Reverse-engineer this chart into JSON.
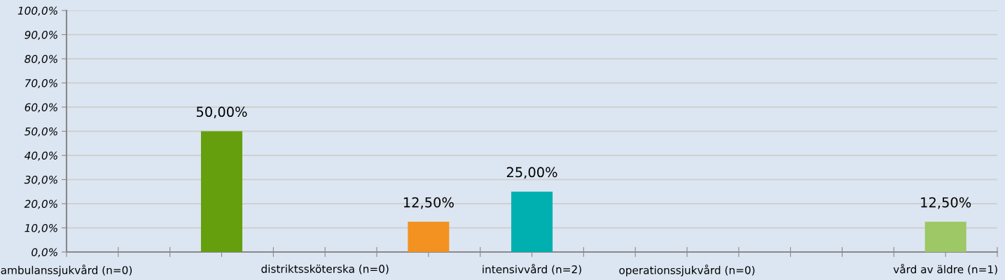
{
  "chart_data": {
    "type": "bar",
    "categories": [
      "ambulanssjukvård (n=0)",
      null,
      null,
      null,
      null,
      "distriktssköterska (n=0)",
      null,
      null,
      null,
      "intensivvård (n=2)",
      null,
      null,
      "operationssjukvård (n=0)",
      null,
      null,
      null,
      null,
      "vård av äldre (n=1)",
      null
    ],
    "values": [
      null,
      null,
      null,
      50,
      null,
      null,
      null,
      12.5,
      null,
      25,
      null,
      null,
      null,
      null,
      null,
      null,
      null,
      12.5,
      null
    ],
    "colors": [
      "#659f0d",
      "#659f0d",
      "#659f0d",
      "#659f0d",
      "#659f0d",
      "#659f0d",
      "#659f0d",
      "#f39221",
      "#659f0d",
      "#00b0b0",
      "#659f0d",
      "#659f0d",
      "#659f0d",
      "#659f0d",
      "#659f0d",
      "#659f0d",
      "#659f0d",
      "#9dc865",
      "#659f0d"
    ],
    "value_labels": [
      null,
      null,
      null,
      "50,00%",
      null,
      null,
      null,
      "12,50%",
      null,
      "25,00%",
      null,
      null,
      null,
      null,
      null,
      null,
      null,
      "12,50%",
      null
    ],
    "ylim": [
      0,
      100
    ],
    "yticks": [
      {
        "value": 0,
        "label": "0,0%"
      },
      {
        "value": 10,
        "label": "10,0%"
      },
      {
        "value": 20,
        "label": "20,0%"
      },
      {
        "value": 30,
        "label": "30,0%"
      },
      {
        "value": 40,
        "label": "40,0%"
      },
      {
        "value": 50,
        "label": "50,0%"
      },
      {
        "value": 60,
        "label": "60,0%"
      },
      {
        "value": 70,
        "label": "70,0%"
      },
      {
        "value": 80,
        "label": "80,0%"
      },
      {
        "value": 90,
        "label": "90,0%"
      },
      {
        "value": 100,
        "label": "100,0%"
      }
    ],
    "grid": "y"
  }
}
